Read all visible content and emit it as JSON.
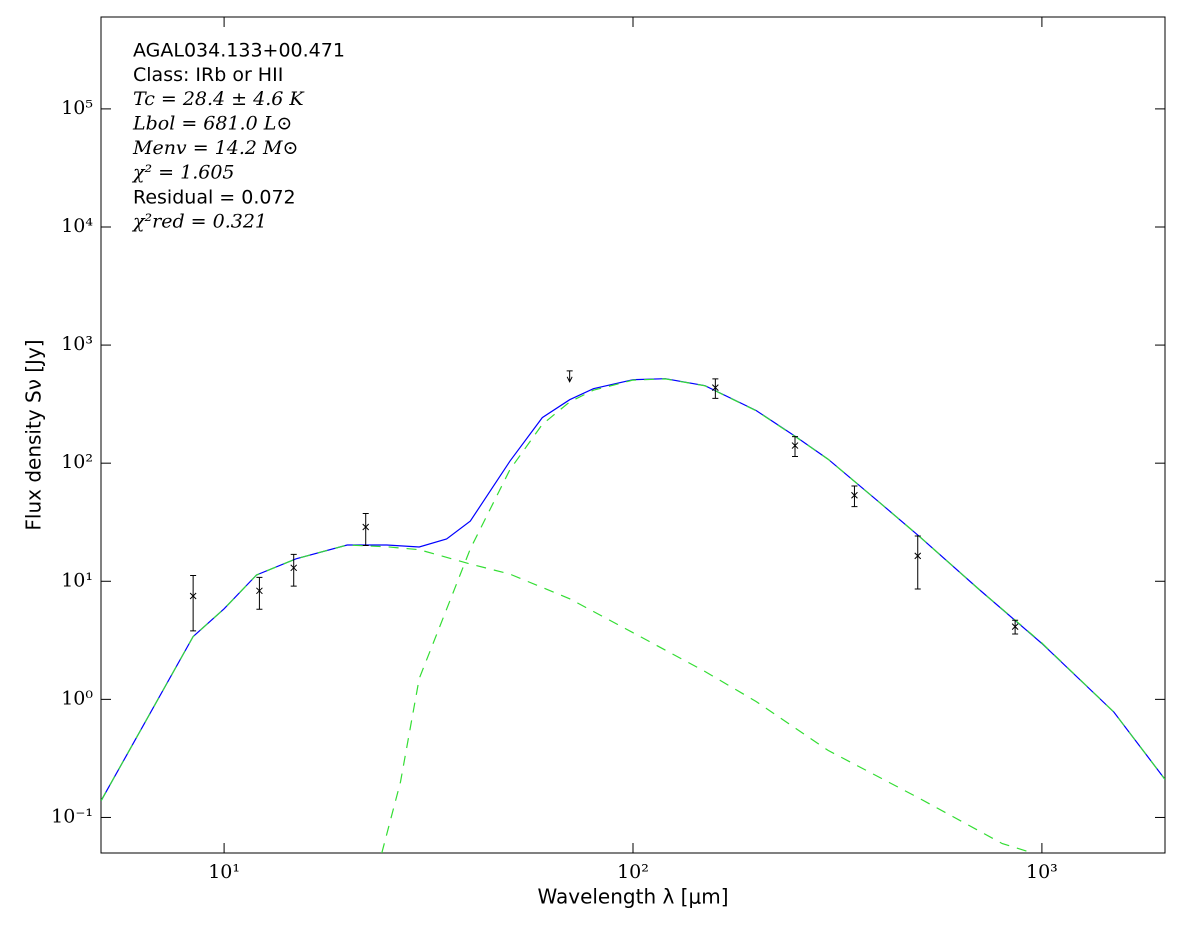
{
  "chart_data": {
    "type": "line",
    "annotations": [
      "AGAL034.133+00.471",
      "Class: IRb or HII",
      "Tc = 28.4 ± 4.6 K",
      "Lbol = 681.0 L⊙",
      "Menv = 14.2 M⊙",
      "χ² = 1.605",
      "Residual = 0.072",
      "χ²red = 0.321"
    ],
    "x_label": "Wavelength λ [μm]",
    "y_label": "Flux density Sν [Jy]",
    "xscale": "log",
    "yscale": "log",
    "xlim": [
      5,
      2000
    ],
    "ylim": [
      0.05,
      600000
    ],
    "xticks": [
      {
        "value": 10,
        "label": "10¹"
      },
      {
        "value": 100,
        "label": "10²"
      },
      {
        "value": 1000,
        "label": "10³"
      }
    ],
    "yticks": [
      {
        "value": 0.1,
        "label": "10⁻¹"
      },
      {
        "value": 1,
        "label": "10⁰"
      },
      {
        "value": 10,
        "label": "10¹"
      },
      {
        "value": 100,
        "label": "10²"
      },
      {
        "value": 1000,
        "label": "10³"
      },
      {
        "value": 10000,
        "label": "10⁴"
      },
      {
        "value": 100000,
        "label": "10⁵"
      }
    ],
    "models": [
      {
        "color": "#0000ff",
        "dash": false,
        "x": [
          5,
          8.4,
          10,
          12,
          15,
          20,
          25,
          30,
          35,
          40,
          50,
          60,
          70,
          80,
          100,
          120,
          150,
          200,
          250,
          300,
          400,
          500,
          700,
          1000,
          1500,
          2000
        ],
        "values": [
          0.138,
          3.4,
          5.85,
          11.3,
          15.5,
          20.3,
          20.3,
          19.5,
          22.8,
          32.3,
          104,
          243,
          345,
          427,
          509,
          519,
          453,
          279,
          168,
          108,
          46.7,
          24.2,
          8.6,
          2.97,
          0.78,
          0.21
        ]
      },
      {
        "color": "#33dd33",
        "dash": true,
        "x": [
          5,
          8.4,
          10,
          12,
          15,
          20,
          25,
          30,
          40,
          50,
          70,
          100,
          150,
          200,
          300,
          500,
          800,
          950
        ],
        "values": [
          0.138,
          3.4,
          5.85,
          11.3,
          15.5,
          20.3,
          19.6,
          18.5,
          14.0,
          11.5,
          7.1,
          3.67,
          1.72,
          0.96,
          0.37,
          0.146,
          0.06,
          0.05
        ]
      },
      {
        "color": "#33dd33",
        "dash": true,
        "x": [
          24.3,
          27,
          30,
          35,
          40,
          50,
          60,
          70,
          80,
          100,
          120,
          150,
          200,
          250,
          300,
          400,
          500,
          700,
          1000,
          1500,
          2000
        ],
        "values": [
          0.05,
          0.2,
          1.5,
          5.8,
          18.8,
          88,
          213,
          330,
          415,
          505,
          517,
          452,
          278,
          167,
          108,
          46.7,
          24.2,
          8.6,
          3.0,
          0.78,
          0.21
        ]
      }
    ],
    "points": {
      "color": "#000000",
      "x": [
        8.4,
        12.2,
        14.8,
        22.2,
        159,
        249,
        348,
        497,
        860
      ],
      "values": [
        7.5,
        8.3,
        13.0,
        28.8,
        436,
        141,
        53.5,
        16.4,
        4.13
      ],
      "errors": [
        3.7,
        2.5,
        3.9,
        8.7,
        82,
        27,
        10.6,
        7.8,
        0.55
      ]
    },
    "upper_limits": {
      "color": "#000000",
      "x": [
        70
      ],
      "values": [
        560
      ]
    }
  }
}
